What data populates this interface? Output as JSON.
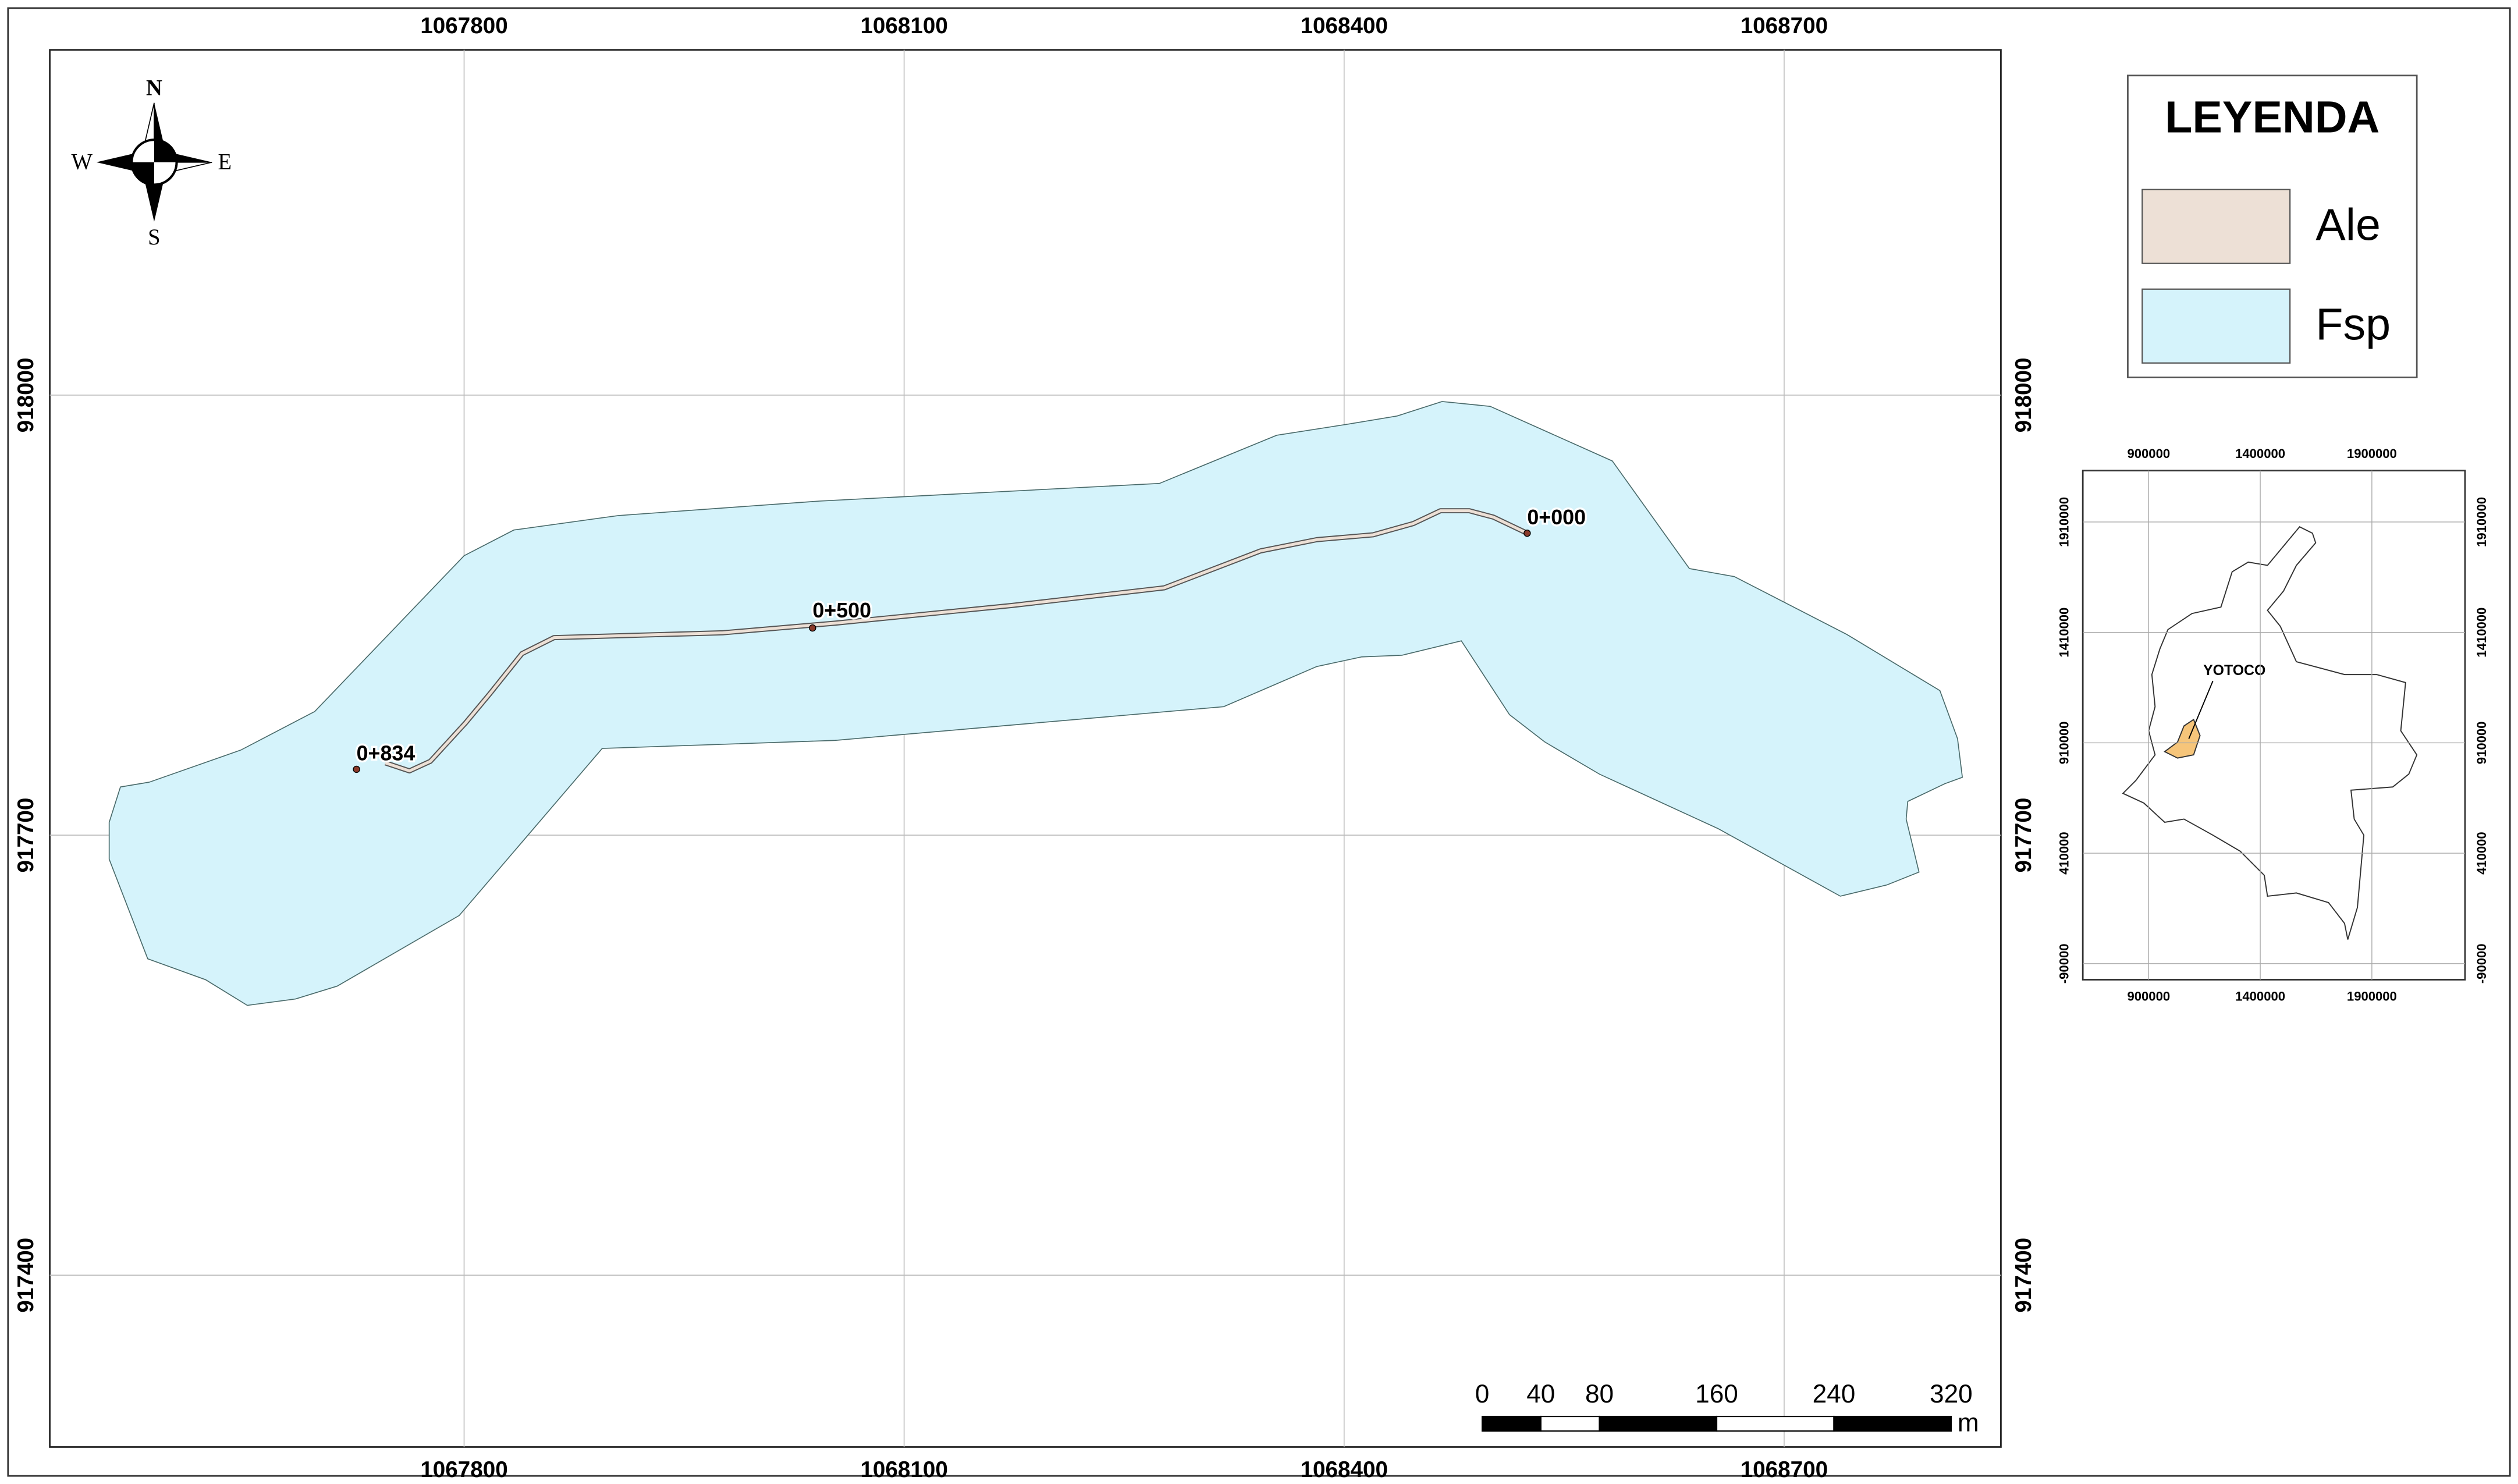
{
  "map": {
    "grid": {
      "x_labels": [
        1067800,
        1068100,
        1068400,
        1068700
      ],
      "y_labels": [
        918000,
        917700,
        917400
      ]
    },
    "compass": {
      "n": "N",
      "s": "S",
      "e": "E",
      "w": "W"
    },
    "stations": [
      "0+000",
      "0+500",
      "0+834"
    ],
    "legend": {
      "title": "LEYENDA",
      "items": [
        {
          "label": "Ale",
          "color": "#ede0d6"
        },
        {
          "label": "Fsp",
          "color": "#d5f3fb"
        }
      ]
    },
    "scale_bar": {
      "ticks": [
        0,
        40,
        80,
        160,
        240,
        320
      ],
      "unit": "m"
    },
    "inset": {
      "x_labels": [
        900000,
        1400000,
        1900000
      ],
      "y_labels": [
        1910000,
        1410000,
        910000,
        410000,
        -90000
      ],
      "place": "YOTOCO"
    }
  }
}
